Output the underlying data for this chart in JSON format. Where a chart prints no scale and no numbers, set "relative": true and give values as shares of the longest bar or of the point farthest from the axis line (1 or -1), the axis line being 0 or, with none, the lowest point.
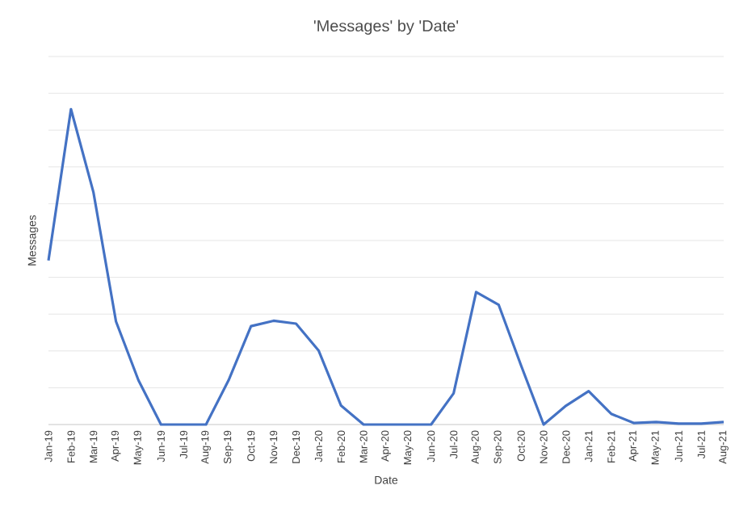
{
  "chart_data": {
    "type": "line",
    "title": "'Messages' by 'Date'",
    "xlabel": "Date",
    "ylabel": "Messages",
    "relative": true,
    "grid": "y",
    "legend": false,
    "marker": "none",
    "line_style": "solid",
    "categories": [
      "Jan-19",
      "Feb-19",
      "Mar-19",
      "Apr-19",
      "May-19",
      "Jun-19",
      "Jul-19",
      "Aug-19",
      "Sep-19",
      "Oct-19",
      "Nov-19",
      "Dec-19",
      "Jan-20",
      "Feb-20",
      "Mar-20",
      "Apr-20",
      "May-20",
      "Jun-20",
      "Jul-20",
      "Aug-20",
      "Sep-20",
      "Oct-20",
      "Nov-20",
      "Dec-20",
      "Jan-21",
      "Feb-21",
      "Apr-21",
      "May-21",
      "Jun-21",
      "Jul-21",
      "Aug-21"
    ],
    "series": [
      {
        "color": "#4472c4",
        "values": [
          0.52,
          1.0,
          0.736,
          0.327,
          0.14,
          0,
          0,
          0,
          0.14,
          0.312,
          0.329,
          0.32,
          0.235,
          0.06,
          0,
          0,
          0,
          0,
          0.099,
          0.42,
          0.38,
          0.187,
          0,
          0.06,
          0.106,
          0.034,
          0.005,
          0.008,
          0.003,
          0.003,
          0.008
        ]
      }
    ]
  }
}
